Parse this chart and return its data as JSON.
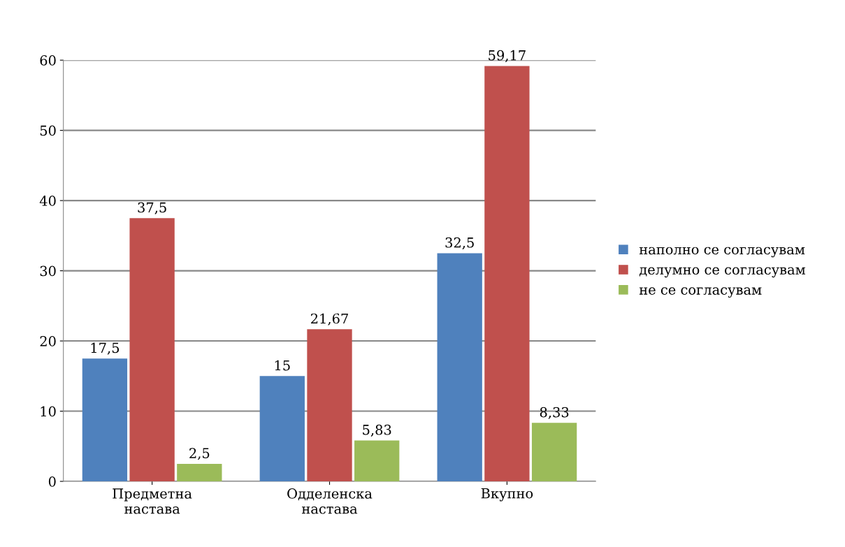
{
  "chart_data": {
    "type": "bar",
    "categories": [
      "Предметна\nнастава",
      "Одделенска\nнастава",
      "Вкупно"
    ],
    "series": [
      {
        "name": "наполно се согласувам",
        "color": "#4f81bd",
        "values": [
          17.5,
          15,
          32.5
        ],
        "value_labels": [
          "17,5",
          "15",
          "32,5"
        ]
      },
      {
        "name": "делумно се согласувам",
        "color": "#c0504d",
        "values": [
          37.5,
          21.67,
          59.17
        ],
        "value_labels": [
          "37,5",
          "21,67",
          "59,17"
        ]
      },
      {
        "name": "не се согласувам",
        "color": "#9bbb59",
        "values": [
          2.5,
          5.83,
          8.33
        ],
        "value_labels": [
          "2,5",
          "5,83",
          "8,33"
        ]
      }
    ],
    "ylim": [
      0,
      60
    ],
    "yticks": [
      0,
      10,
      20,
      30,
      40,
      50,
      60
    ],
    "grid": "y",
    "legend": "right"
  }
}
